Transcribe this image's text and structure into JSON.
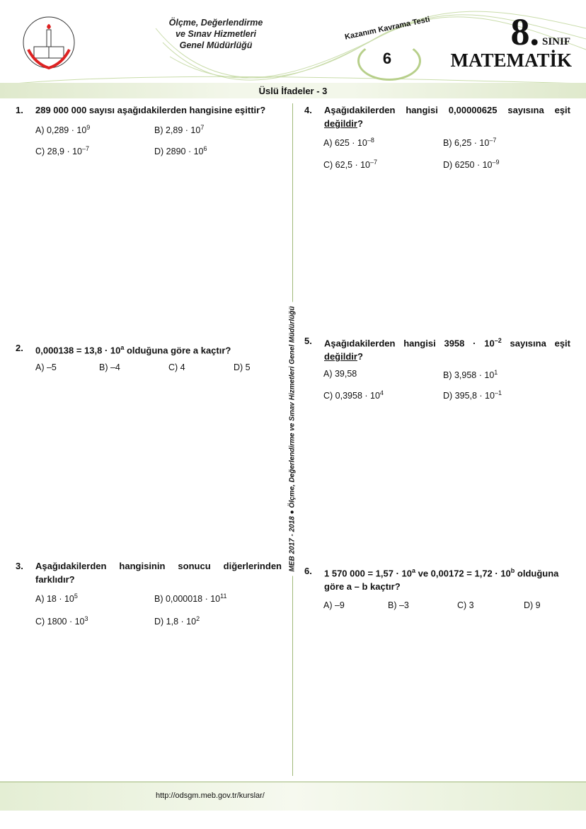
{
  "header": {
    "org_lines": [
      "Ölçme, Değerlendirme",
      "ve Sınav Hizmetleri",
      "Genel Müdürlüğü"
    ],
    "logo_text": "T.C. MİLLİ EĞİTİM BAKANLIĞI",
    "test_label": "Kazanım Kavrama Testi",
    "test_number": "6",
    "grade_number": "8.",
    "grade_label": "SINIF",
    "subject": "MATEMATİK",
    "topic": "Üslü İfadeler - 3",
    "accent": "#b7cf8a"
  },
  "side_text": "MEB  2017 - 2018  ●  Ölçme, Değerlendirme ve Sınav Hizmetleri Genel Müdürlüğü",
  "questions": [
    {
      "num": "1.",
      "text": "289 000 000 sayısı aşağıdakilerden hangisine eşittir?",
      "options": [
        {
          "l": "A) 0,289 · 10",
          "e": "9"
        },
        {
          "l": "B) 2,89 · 10",
          "e": "7"
        },
        {
          "l": "C) 28,9 · 10",
          "e": "–7"
        },
        {
          "l": "D) 2890 · 10",
          "e": "6"
        }
      ]
    },
    {
      "num": "2.",
      "pre": "0,000138 = 13,8 · 10",
      "exp": "a",
      "post": " olduğuna göre a kaçtır?",
      "options": [
        {
          "l": "A) –5"
        },
        {
          "l": "B) –4"
        },
        {
          "l": "C) 4"
        },
        {
          "l": "D) 5"
        }
      ]
    },
    {
      "num": "3.",
      "text": "Aşağıdakilerden hangisinin sonucu diğerlerinden farklıdır?",
      "options": [
        {
          "l": "A) 18 · 10",
          "e": "5"
        },
        {
          "l": "B) 0,000018 · 10",
          "e": "11"
        },
        {
          "l": "C) 1800 · 10",
          "e": "3"
        },
        {
          "l": "D) 1,8 · 10",
          "e": "2"
        }
      ]
    },
    {
      "num": "4.",
      "text": "Aşağıdakilerden hangisi 0,00000625 sayısına eşit",
      "under": "değildir",
      "end": "?",
      "options": [
        {
          "l": "A) 625 · 10",
          "e": "–8"
        },
        {
          "l": "B) 6,25 · 10",
          "e": "–7"
        },
        {
          "l": "C) 62,5 · 10",
          "e": "–7"
        },
        {
          "l": "D) 6250 · 10",
          "e": "–9"
        }
      ]
    },
    {
      "num": "5.",
      "pre": "Aşağıdakilerden hangisi 3958 · 10",
      "exp": "–2",
      "post": " sayısına eşit ",
      "under": "değildir",
      "end": "?",
      "options": [
        {
          "l": "A) 39,58"
        },
        {
          "l": "B) 3,958 · 10",
          "e": "1"
        },
        {
          "l": "C) 0,3958 · 10",
          "e": "4"
        },
        {
          "l": "D) 395,8 · 10",
          "e": "–1"
        }
      ]
    },
    {
      "num": "6.",
      "pre": "1 570 000 = 1,57 · 10",
      "exp": "a",
      "mid": " ve 0,00172 = 1,72 · 10",
      "exp2": "b",
      "post": " olduğuna göre a – b kaçtır?",
      "options": [
        {
          "l": "A) –9"
        },
        {
          "l": "B) –3"
        },
        {
          "l": "C) 3"
        },
        {
          "l": "D) 9"
        }
      ]
    }
  ],
  "footer": {
    "url": "http://odsgm.meb.gov.tr/kurslar/"
  }
}
